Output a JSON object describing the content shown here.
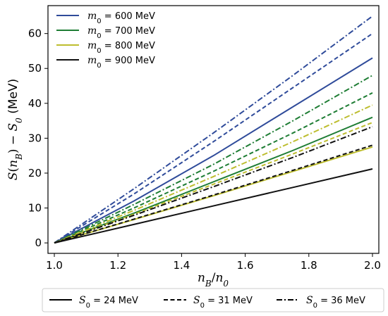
{
  "chart_data": {
    "type": "line",
    "xlabel": "n_B/n_0",
    "ylabel": "S(n_B) − S_0 (MeV)",
    "xlim": [
      0.98,
      2.02
    ],
    "ylim": [
      -3,
      68
    ],
    "x_ticks": [
      "1.0",
      "1.2",
      "1.4",
      "1.6",
      "1.8",
      "2.0"
    ],
    "y_ticks": [
      "0",
      "10",
      "20",
      "30",
      "40",
      "50",
      "60"
    ],
    "grid": false,
    "colors": {
      "m600": "#2f4b9a",
      "m700": "#1e7d34",
      "m800": "#bdbd2e",
      "m900": "#111111"
    },
    "legend_colors": {
      "placement": "top-left",
      "entries": [
        {
          "math": "m",
          "sub": "0",
          "text": " = 600 MeV",
          "color_key": "m600"
        },
        {
          "math": "m",
          "sub": "0",
          "text": " = 700 MeV",
          "color_key": "m700"
        },
        {
          "math": "m",
          "sub": "0",
          "text": " = 800 MeV",
          "color_key": "m800"
        },
        {
          "math": "m",
          "sub": "0",
          "text": " = 900 MeV",
          "color_key": "m900"
        }
      ]
    },
    "legend_styles": {
      "placement": "bottom-outside",
      "entries": [
        {
          "math": "S",
          "sub": "0",
          "text": " = 24 MeV",
          "dash": "solid"
        },
        {
          "math": "S",
          "sub": "0",
          "text": " = 31 MeV",
          "dash": "dashed"
        },
        {
          "math": "S",
          "sub": "0",
          "text": " = 36 MeV",
          "dash": "dashdot"
        }
      ]
    },
    "series": [
      {
        "m0": "600 MeV",
        "S0": "24 MeV",
        "color_key": "m600",
        "dash": "solid",
        "x": [
          1.0,
          1.25,
          1.5,
          1.75,
          2.0
        ],
        "y": [
          0,
          12,
          25,
          39,
          53
        ]
      },
      {
        "m0": "600 MeV",
        "S0": "31 MeV",
        "color_key": "m600",
        "dash": "dashed",
        "x": [
          1.0,
          1.25,
          1.5,
          1.75,
          2.0
        ],
        "y": [
          0,
          14,
          29,
          44.5,
          60
        ]
      },
      {
        "m0": "600 MeV",
        "S0": "36 MeV",
        "color_key": "m600",
        "dash": "dashdot",
        "x": [
          1.0,
          1.25,
          1.5,
          1.75,
          2.0
        ],
        "y": [
          0,
          15.5,
          31.5,
          48,
          65
        ]
      },
      {
        "m0": "700 MeV",
        "S0": "24 MeV",
        "color_key": "m700",
        "dash": "solid",
        "x": [
          1.0,
          1.25,
          1.5,
          1.75,
          2.0
        ],
        "y": [
          0,
          8.5,
          17.5,
          26.5,
          36
        ]
      },
      {
        "m0": "700 MeV",
        "S0": "31 MeV",
        "color_key": "m700",
        "dash": "dashed",
        "x": [
          1.0,
          1.25,
          1.5,
          1.75,
          2.0
        ],
        "y": [
          0,
          10,
          20.5,
          31.5,
          43
        ]
      },
      {
        "m0": "700 MeV",
        "S0": "36 MeV",
        "color_key": "m700",
        "dash": "dashdot",
        "x": [
          1.0,
          1.25,
          1.5,
          1.75,
          2.0
        ],
        "y": [
          0,
          11,
          22.5,
          35,
          48
        ]
      },
      {
        "m0": "800 MeV",
        "S0": "24 MeV",
        "color_key": "m800",
        "dash": "solid",
        "x": [
          1.0,
          1.25,
          1.5,
          1.75,
          2.0
        ],
        "y": [
          0,
          6.7,
          13.5,
          20.5,
          27.5
        ]
      },
      {
        "m0": "800 MeV",
        "S0": "31 MeV",
        "color_key": "m800",
        "dash": "dashed",
        "x": [
          1.0,
          1.25,
          1.5,
          1.75,
          2.0
        ],
        "y": [
          0,
          8.2,
          16.8,
          25.5,
          34.5
        ]
      },
      {
        "m0": "800 MeV",
        "S0": "36 MeV",
        "color_key": "m800",
        "dash": "dashdot",
        "x": [
          1.0,
          1.25,
          1.5,
          1.75,
          2.0
        ],
        "y": [
          0,
          9.3,
          19,
          29,
          39.5
        ]
      },
      {
        "m0": "900 MeV",
        "S0": "24 MeV",
        "color_key": "m900",
        "dash": "solid",
        "x": [
          1.0,
          1.25,
          1.5,
          1.75,
          2.0
        ],
        "y": [
          0,
          5.3,
          10.6,
          15.9,
          21.2
        ]
      },
      {
        "m0": "900 MeV",
        "S0": "31 MeV",
        "color_key": "m900",
        "dash": "dashed",
        "x": [
          1.0,
          1.25,
          1.5,
          1.75,
          2.0
        ],
        "y": [
          0,
          6.8,
          13.7,
          20.8,
          28
        ]
      },
      {
        "m0": "900 MeV",
        "S0": "36 MeV",
        "color_key": "m900",
        "dash": "dashdot",
        "x": [
          1.0,
          1.25,
          1.5,
          1.75,
          2.0
        ],
        "y": [
          0,
          7.9,
          16.1,
          24.5,
          33.3
        ]
      }
    ]
  }
}
